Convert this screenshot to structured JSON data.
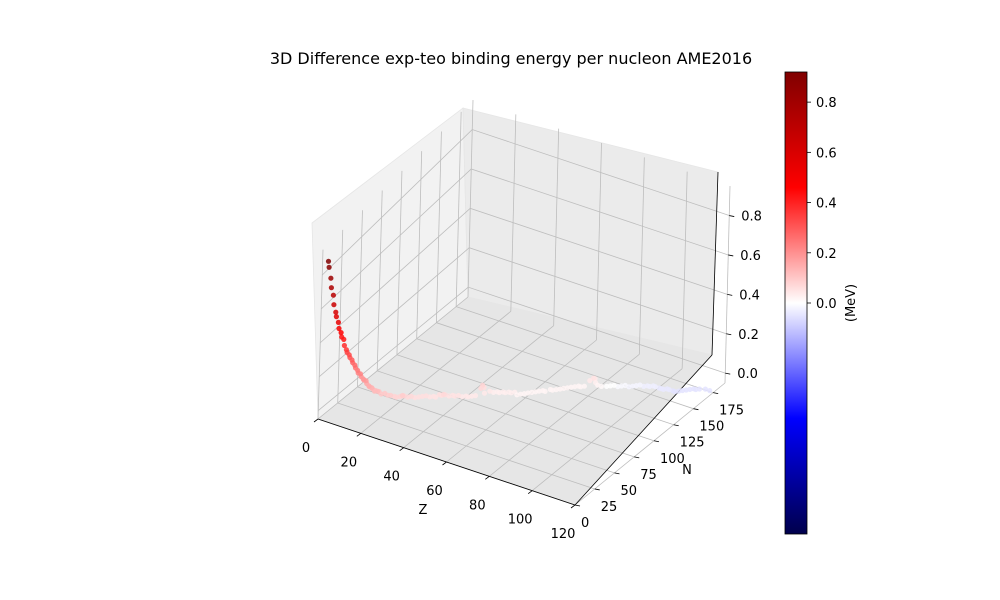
{
  "chart_data": {
    "type": "scatter",
    "projection": "3d",
    "title": "3D Difference exp-teo binding energy per nucleon AME2016",
    "xlabel": "Z",
    "ylabel": "N",
    "zlabel": "",
    "xlim": [
      0,
      120
    ],
    "ylim": [
      0,
      190
    ],
    "zlim": [
      -0.05,
      0.95
    ],
    "x_ticks": [
      "0",
      "20",
      "40",
      "60",
      "80",
      "100",
      "120"
    ],
    "y_ticks": [
      "0",
      "25",
      "50",
      "75",
      "100",
      "125",
      "150",
      "175"
    ],
    "z_ticks": [
      "0.0",
      "0.2",
      "0.4",
      "0.6",
      "0.8"
    ],
    "grid": true,
    "colormap": "seismic",
    "colorbar": {
      "label": "(MeV)",
      "ticks": [
        "0.0",
        "0.2",
        "0.4",
        "0.6",
        "0.8"
      ],
      "range": [
        -0.92,
        0.92
      ]
    },
    "colors": {
      "max_red": "#800000",
      "mid": "#ffffff",
      "max_blue": "#00004c",
      "points_red": "#ff4040",
      "points_blue": "#2020e0"
    },
    "series": [
      {
        "points": [
          [
            2,
            2,
            0.88
          ],
          [
            2,
            3,
            0.84
          ],
          [
            3,
            3,
            0.78
          ],
          [
            3,
            4,
            0.72
          ],
          [
            4,
            4,
            0.68
          ],
          [
            4,
            5,
            0.62
          ],
          [
            5,
            5,
            0.58
          ],
          [
            5,
            6,
            0.55
          ],
          [
            6,
            6,
            0.52
          ],
          [
            6,
            7,
            0.48
          ],
          [
            7,
            7,
            0.46
          ],
          [
            7,
            8,
            0.43
          ],
          [
            8,
            8,
            0.42
          ],
          [
            8,
            9,
            0.38
          ],
          [
            9,
            9,
            0.36
          ],
          [
            9,
            10,
            0.34
          ],
          [
            10,
            10,
            0.33
          ],
          [
            10,
            11,
            0.31
          ],
          [
            11,
            11,
            0.3
          ],
          [
            11,
            12,
            0.28
          ],
          [
            12,
            12,
            0.27
          ],
          [
            12,
            13,
            0.25
          ],
          [
            13,
            13,
            0.24
          ],
          [
            13,
            14,
            0.22
          ],
          [
            14,
            14,
            0.22
          ],
          [
            14,
            15,
            0.2
          ],
          [
            15,
            15,
            0.19
          ],
          [
            15,
            16,
            0.18
          ],
          [
            16,
            16,
            0.18
          ],
          [
            16,
            17,
            0.16
          ],
          [
            17,
            17,
            0.15
          ],
          [
            17,
            18,
            0.14
          ],
          [
            18,
            18,
            0.14
          ],
          [
            18,
            19,
            0.13
          ],
          [
            19,
            19,
            0.12
          ],
          [
            19,
            20,
            0.12
          ],
          [
            20,
            20,
            0.12
          ],
          [
            20,
            22,
            0.11
          ],
          [
            21,
            22,
            0.1
          ],
          [
            22,
            24,
            0.1
          ],
          [
            23,
            25,
            0.09
          ],
          [
            24,
            26,
            0.09
          ],
          [
            25,
            28,
            0.08
          ],
          [
            26,
            28,
            0.08
          ],
          [
            27,
            30,
            0.08
          ],
          [
            28,
            30,
            0.09
          ],
          [
            28,
            32,
            0.08
          ],
          [
            29,
            34,
            0.07
          ],
          [
            30,
            36,
            0.07
          ],
          [
            31,
            38,
            0.06
          ],
          [
            32,
            40,
            0.06
          ],
          [
            33,
            42,
            0.06
          ],
          [
            34,
            44,
            0.06
          ],
          [
            35,
            46,
            0.05
          ],
          [
            36,
            48,
            0.05
          ],
          [
            37,
            48,
            0.05
          ],
          [
            38,
            50,
            0.06
          ],
          [
            39,
            50,
            0.06
          ],
          [
            40,
            50,
            0.07
          ],
          [
            40,
            52,
            0.06
          ],
          [
            41,
            54,
            0.05
          ],
          [
            42,
            56,
            0.05
          ],
          [
            43,
            56,
            0.05
          ],
          [
            44,
            58,
            0.05
          ],
          [
            45,
            60,
            0.04
          ],
          [
            46,
            62,
            0.04
          ],
          [
            47,
            62,
            0.04
          ],
          [
            48,
            64,
            0.04
          ],
          [
            49,
            66,
            0.04
          ],
          [
            50,
            70,
            0.07
          ],
          [
            50,
            72,
            0.08
          ],
          [
            50,
            74,
            0.06
          ],
          [
            51,
            72,
            0.04
          ],
          [
            52,
            76,
            0.04
          ],
          [
            53,
            78,
            0.03
          ],
          [
            54,
            80,
            0.03
          ],
          [
            55,
            80,
            0.03
          ],
          [
            56,
            82,
            0.03
          ],
          [
            57,
            82,
            0.03
          ],
          [
            58,
            84,
            0.03
          ],
          [
            59,
            84,
            0.03
          ],
          [
            60,
            86,
            0.03
          ],
          [
            61,
            86,
            0.02
          ],
          [
            62,
            88,
            0.02
          ],
          [
            63,
            90,
            0.02
          ],
          [
            64,
            92,
            0.02
          ],
          [
            65,
            94,
            0.02
          ],
          [
            66,
            96,
            0.02
          ],
          [
            67,
            98,
            0.02
          ],
          [
            68,
            100,
            0.02
          ],
          [
            69,
            100,
            0.02
          ],
          [
            70,
            104,
            0.02
          ],
          [
            71,
            104,
            0.02
          ],
          [
            72,
            106,
            0.02
          ],
          [
            73,
            108,
            0.02
          ],
          [
            74,
            110,
            0.02
          ],
          [
            75,
            112,
            0.02
          ],
          [
            76,
            114,
            0.02
          ],
          [
            77,
            116,
            0.02
          ],
          [
            78,
            118,
            0.02
          ],
          [
            79,
            118,
            0.02
          ],
          [
            80,
            120,
            0.02
          ],
          [
            81,
            124,
            0.04
          ],
          [
            82,
            126,
            0.05
          ],
          [
            82,
            128,
            0.04
          ],
          [
            83,
            126,
            0.03
          ],
          [
            84,
            126,
            0.02
          ],
          [
            85,
            128,
            0.01
          ],
          [
            86,
            132,
            0.0
          ],
          [
            87,
            134,
            0.0
          ],
          [
            88,
            136,
            0.0
          ],
          [
            89,
            138,
            -0.01
          ],
          [
            90,
            140,
            -0.01
          ],
          [
            91,
            142,
            -0.01
          ],
          [
            92,
            144,
            -0.02
          ],
          [
            93,
            146,
            -0.02
          ],
          [
            94,
            148,
            -0.02
          ],
          [
            95,
            150,
            -0.02
          ],
          [
            96,
            152,
            -0.03
          ],
          [
            97,
            154,
            -0.03
          ],
          [
            98,
            154,
            -0.03
          ],
          [
            99,
            156,
            -0.03
          ],
          [
            100,
            156,
            -0.03
          ],
          [
            101,
            158,
            -0.04
          ],
          [
            102,
            158,
            -0.04
          ],
          [
            103,
            158,
            -0.04
          ],
          [
            104,
            160,
            -0.04
          ],
          [
            105,
            160,
            -0.04
          ],
          [
            106,
            162,
            -0.05
          ],
          [
            107,
            162,
            -0.05
          ],
          [
            108,
            164,
            -0.05
          ],
          [
            109,
            166,
            -0.05
          ],
          [
            110,
            168,
            -0.05
          ],
          [
            111,
            170,
            -0.05
          ],
          [
            112,
            172,
            -0.05
          ],
          [
            113,
            172,
            -0.05
          ],
          [
            114,
            174,
            -0.05
          ],
          [
            116,
            176,
            -0.05
          ],
          [
            118,
            176,
            -0.05
          ]
        ]
      }
    ]
  }
}
